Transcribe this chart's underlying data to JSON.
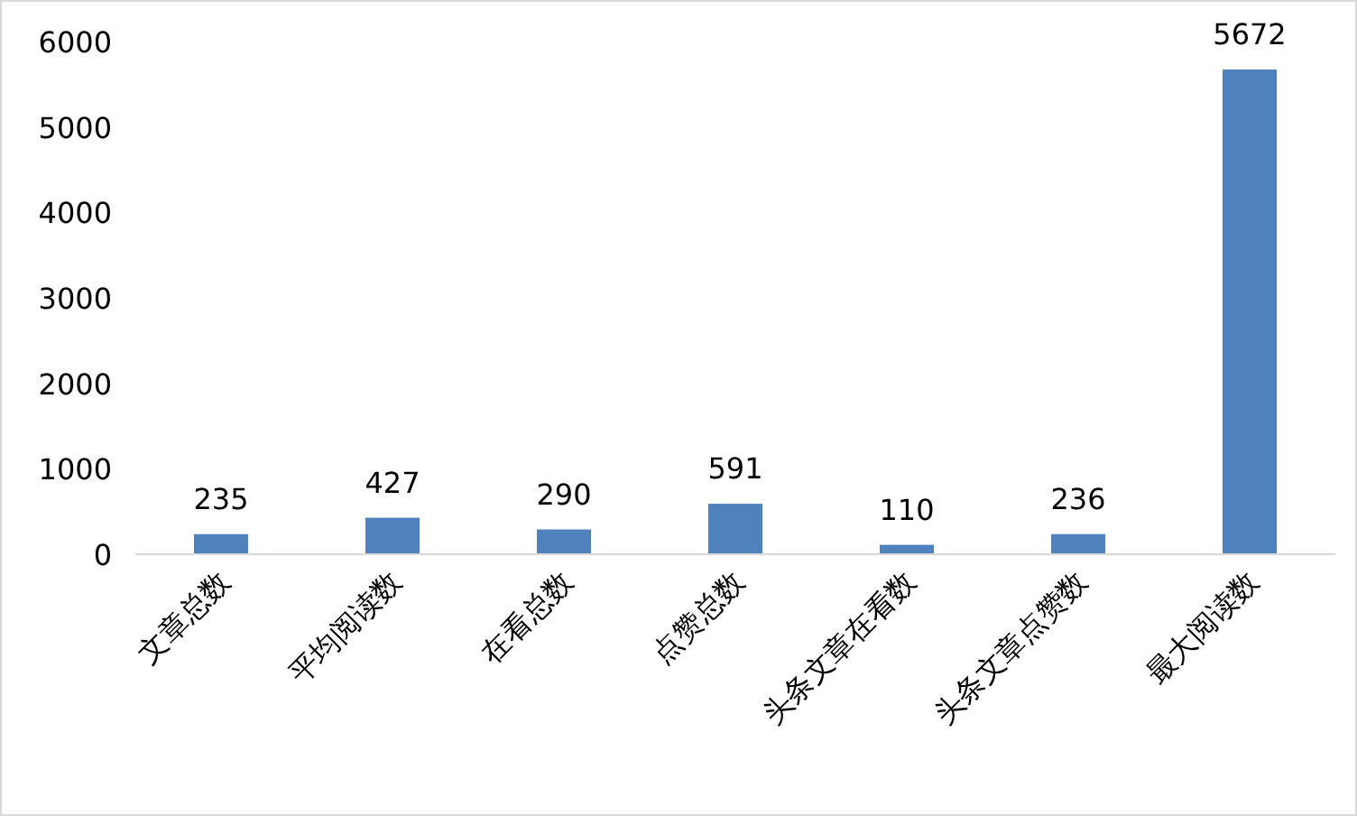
{
  "chart_data": {
    "type": "bar",
    "categories": [
      "文章总数",
      "平均阅读数",
      "在看总数",
      "点赞总数",
      "头条文章在看数",
      "头条文章点赞数",
      "最大阅读数"
    ],
    "values": [
      235,
      427,
      290,
      591,
      110,
      236,
      5672
    ],
    "color": "#4f81bd",
    "ylim": [
      0,
      6000
    ],
    "yticks": [
      0,
      1000,
      2000,
      3000,
      4000,
      5000,
      6000
    ],
    "data_labels": true,
    "grid": false
  }
}
